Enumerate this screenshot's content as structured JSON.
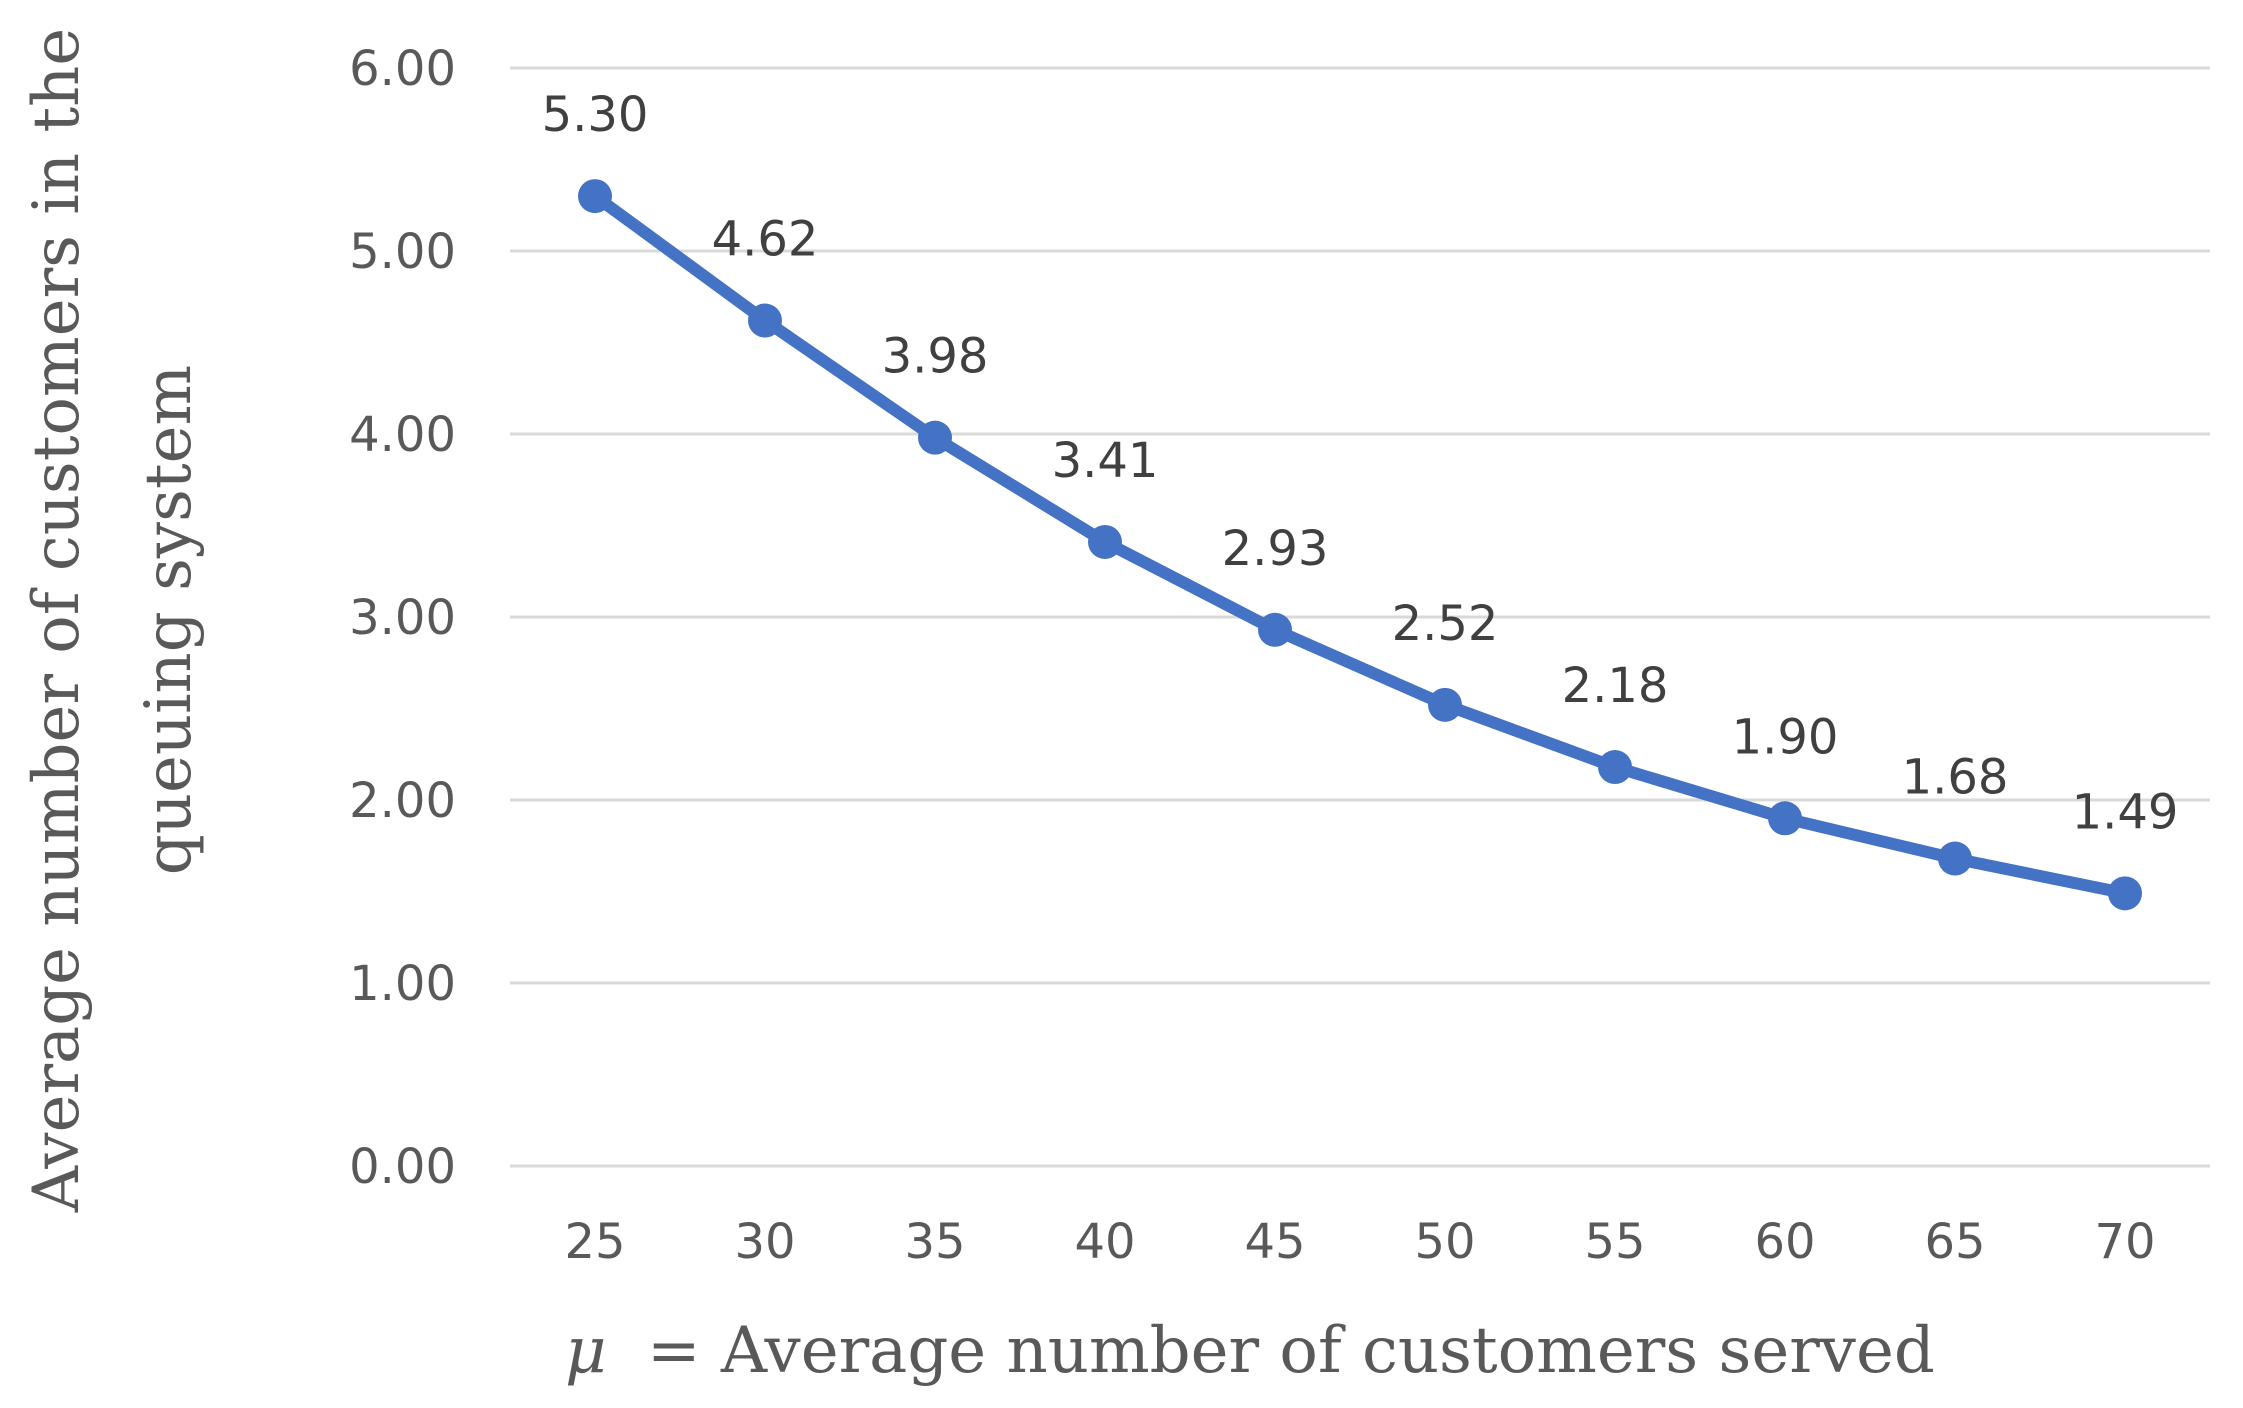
{
  "chart_data": {
    "type": "line",
    "title": "",
    "categories": [
      "25",
      "30",
      "35",
      "40",
      "45",
      "50",
      "55",
      "60",
      "65",
      "70"
    ],
    "x": [
      25,
      30,
      35,
      40,
      45,
      50,
      55,
      60,
      65,
      70
    ],
    "series": [
      {
        "name": "Average number of customers in the queuing system",
        "values": [
          5.3,
          4.62,
          3.98,
          3.41,
          2.93,
          2.52,
          2.18,
          1.9,
          1.68,
          1.49
        ],
        "data_labels": [
          "5.30",
          "4.62",
          "3.98",
          "3.41",
          "2.93",
          "2.52",
          "2.18",
          "1.90",
          "1.68",
          "1.49"
        ],
        "color": "#4472C4"
      }
    ],
    "xlabel": {
      "symbol": "μ",
      "text": " = Average number of customers served"
    },
    "ylabel": {
      "line1": "Average number of customers in the",
      "line2": "queuing system"
    },
    "yticks": [
      0,
      1,
      2,
      3,
      4,
      5,
      6
    ],
    "ytick_labels": [
      "0.00",
      "1.00",
      "2.00",
      "3.00",
      "4.00",
      "5.00",
      "6.00"
    ],
    "ylim": [
      0,
      6
    ],
    "grid": true,
    "legend": "none"
  }
}
